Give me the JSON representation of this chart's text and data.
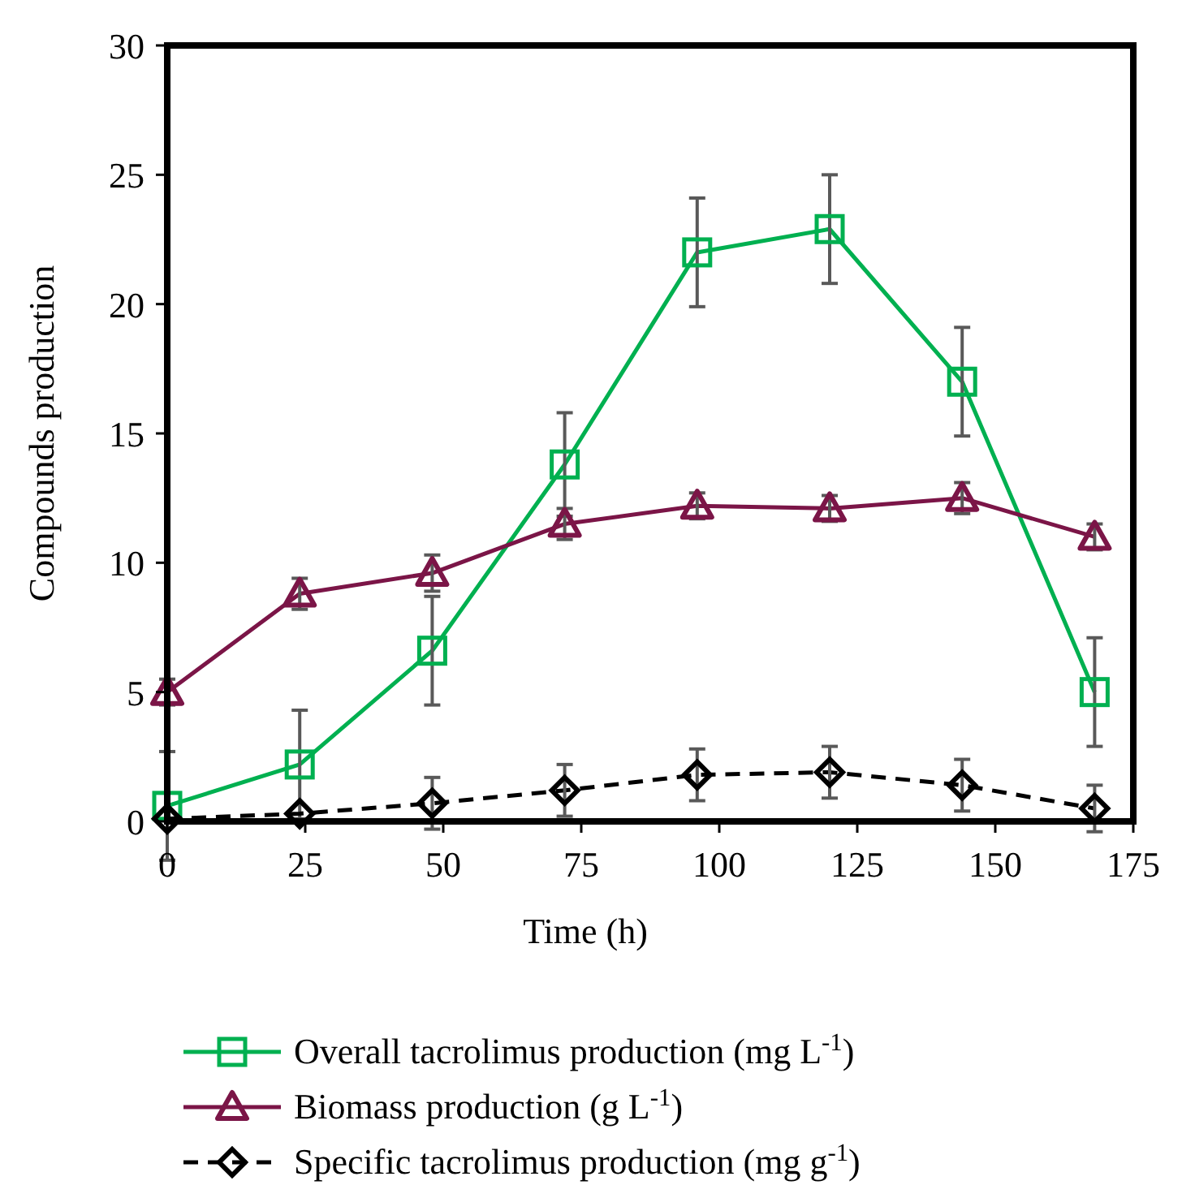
{
  "chart_data": {
    "type": "line",
    "xlabel": "Time (h)",
    "ylabel": "Compounds production",
    "xlim": [
      0,
      175
    ],
    "ylim": [
      0,
      30
    ],
    "xticks": [
      0,
      25,
      50,
      75,
      100,
      125,
      150,
      175
    ],
    "yticks": [
      0,
      5,
      10,
      15,
      20,
      25,
      30
    ],
    "grid": false,
    "legend": "bottom",
    "x": [
      0,
      24,
      48,
      72,
      96,
      120,
      144,
      168
    ],
    "series": [
      {
        "name": "Overall tacrolimus production (mg L$^{-1}$)",
        "color": "#00b050",
        "marker": "square",
        "line_style": "solid",
        "values": [
          0.6,
          2.2,
          6.6,
          13.8,
          22.0,
          22.9,
          17.0,
          5.0
        ],
        "errors": [
          2.1,
          2.1,
          2.1,
          2.0,
          2.1,
          2.1,
          2.1,
          2.1
        ]
      },
      {
        "name": "Biomass production  (g L$^{-1}$)",
        "color": "#7b1547",
        "marker": "triangle",
        "line_style": "solid",
        "values": [
          5.0,
          8.8,
          9.6,
          11.5,
          12.2,
          12.1,
          12.5,
          11.0
        ],
        "errors": [
          0.5,
          0.6,
          0.7,
          0.6,
          0.5,
          0.5,
          0.6,
          0.5
        ]
      },
      {
        "name": "Specific tacrolimus production (mg g$^{-1}$)",
        "color": "#000000",
        "marker": "diamond",
        "line_style": "dashed",
        "values": [
          0.1,
          0.3,
          0.7,
          1.2,
          1.8,
          1.9,
          1.4,
          0.5
        ],
        "errors": [
          null,
          null,
          1.0,
          1.0,
          1.0,
          1.0,
          1.0,
          0.9
        ]
      }
    ]
  }
}
